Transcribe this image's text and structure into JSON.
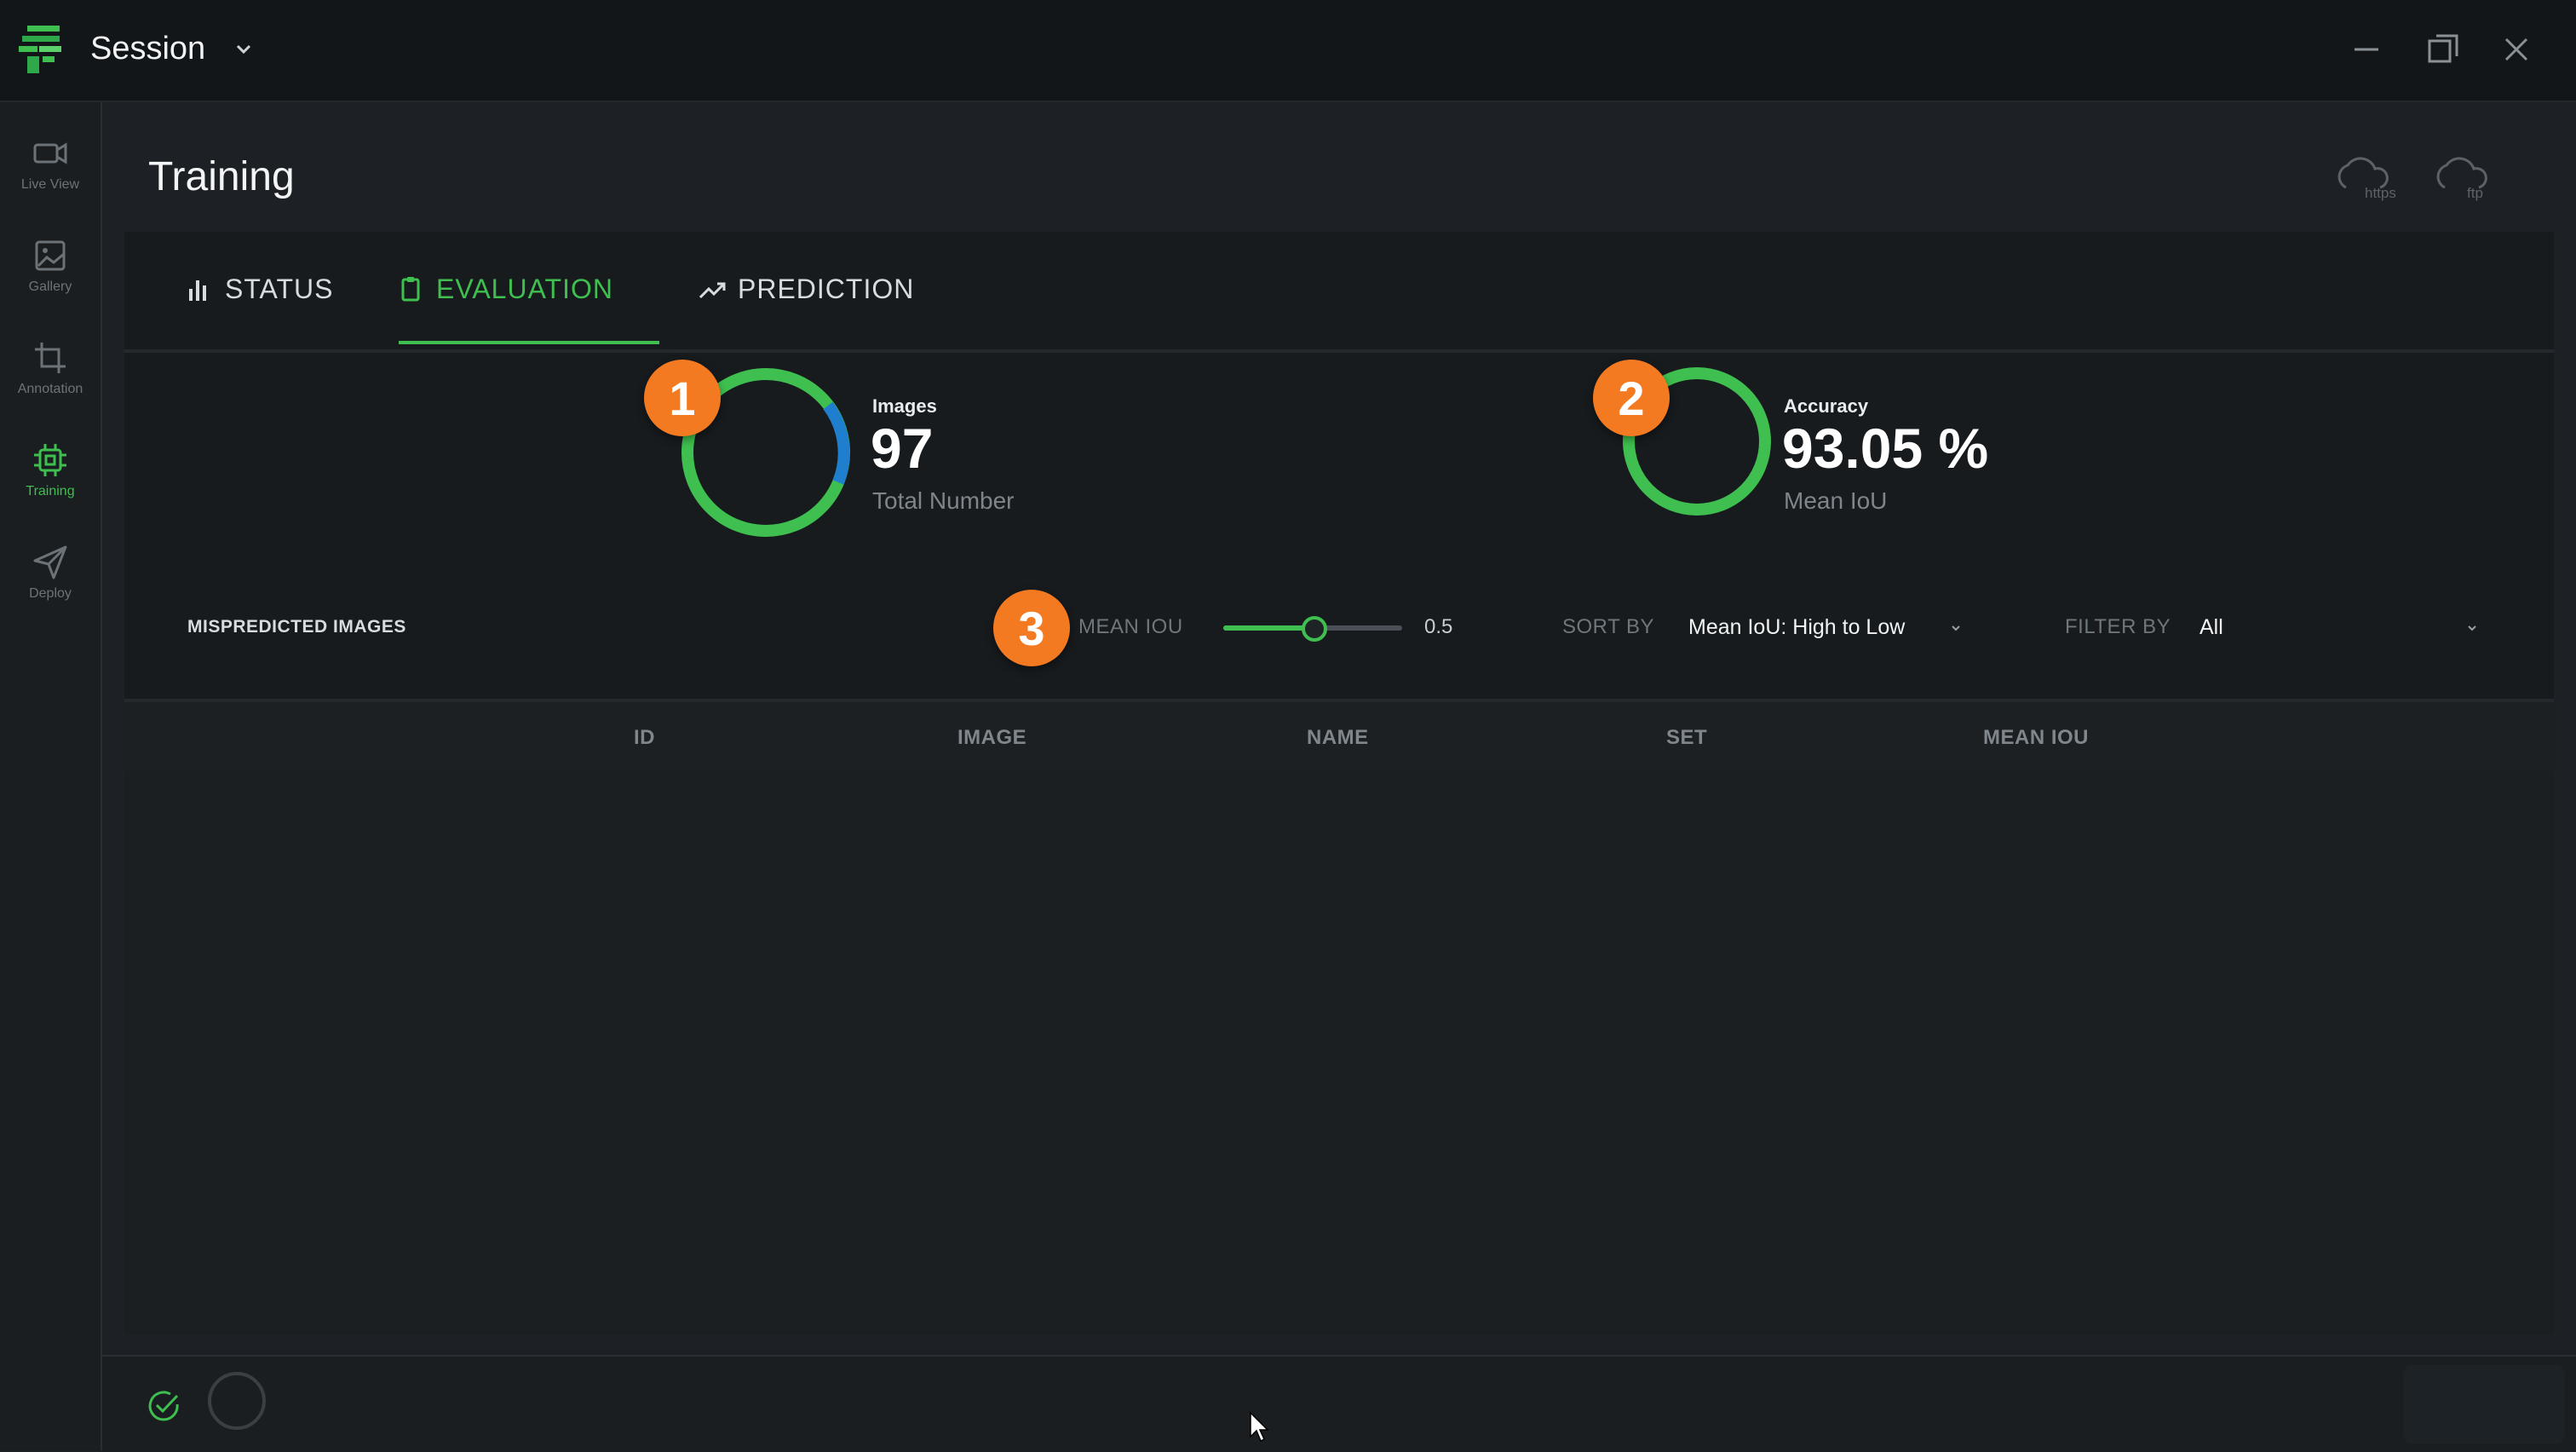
{
  "app": {
    "session_title": "Session",
    "page_title": "Training",
    "accent_color": "#3fbf4f",
    "badge_color": "#f47a21"
  },
  "sidebar": {
    "items": [
      {
        "label": "Live View",
        "icon": "video-camera-icon",
        "active": false
      },
      {
        "label": "Gallery",
        "icon": "image-icon",
        "active": false
      },
      {
        "label": "Annotation",
        "icon": "crop-icon",
        "active": false
      },
      {
        "label": "Training",
        "icon": "chip-icon",
        "active": true
      },
      {
        "label": "Deploy",
        "icon": "send-icon",
        "active": false
      }
    ]
  },
  "header": {
    "cloud_https_label": "https",
    "cloud_ftp_label": "ftp"
  },
  "tabs": [
    {
      "label": "STATUS",
      "icon": "bar-chart-icon",
      "active": false
    },
    {
      "label": "EVALUATION",
      "icon": "clipboard-icon",
      "active": true
    },
    {
      "label": "PREDICTION",
      "icon": "trend-up-icon",
      "active": false
    }
  ],
  "stats": {
    "images": {
      "badge": "1",
      "label": "Images",
      "value": "97",
      "sub": "Total Number"
    },
    "accuracy": {
      "badge": "2",
      "label": "Accuracy",
      "value": "93.05 %",
      "sub": "Mean IoU"
    }
  },
  "controls": {
    "mispredicted_label": "MISPREDICTED IMAGES",
    "badge": "3",
    "mean_iou_label": "MEAN IOU",
    "mean_iou_value": "0.5",
    "sort_by_label": "SORT BY",
    "sort_by_value": "Mean IoU: High to Low",
    "filter_by_label": "FILTER BY",
    "filter_by_value": "All"
  },
  "table": {
    "columns": [
      "ID",
      "IMAGE",
      "NAME",
      "SET",
      "MEAN IOU"
    ],
    "rows": []
  }
}
